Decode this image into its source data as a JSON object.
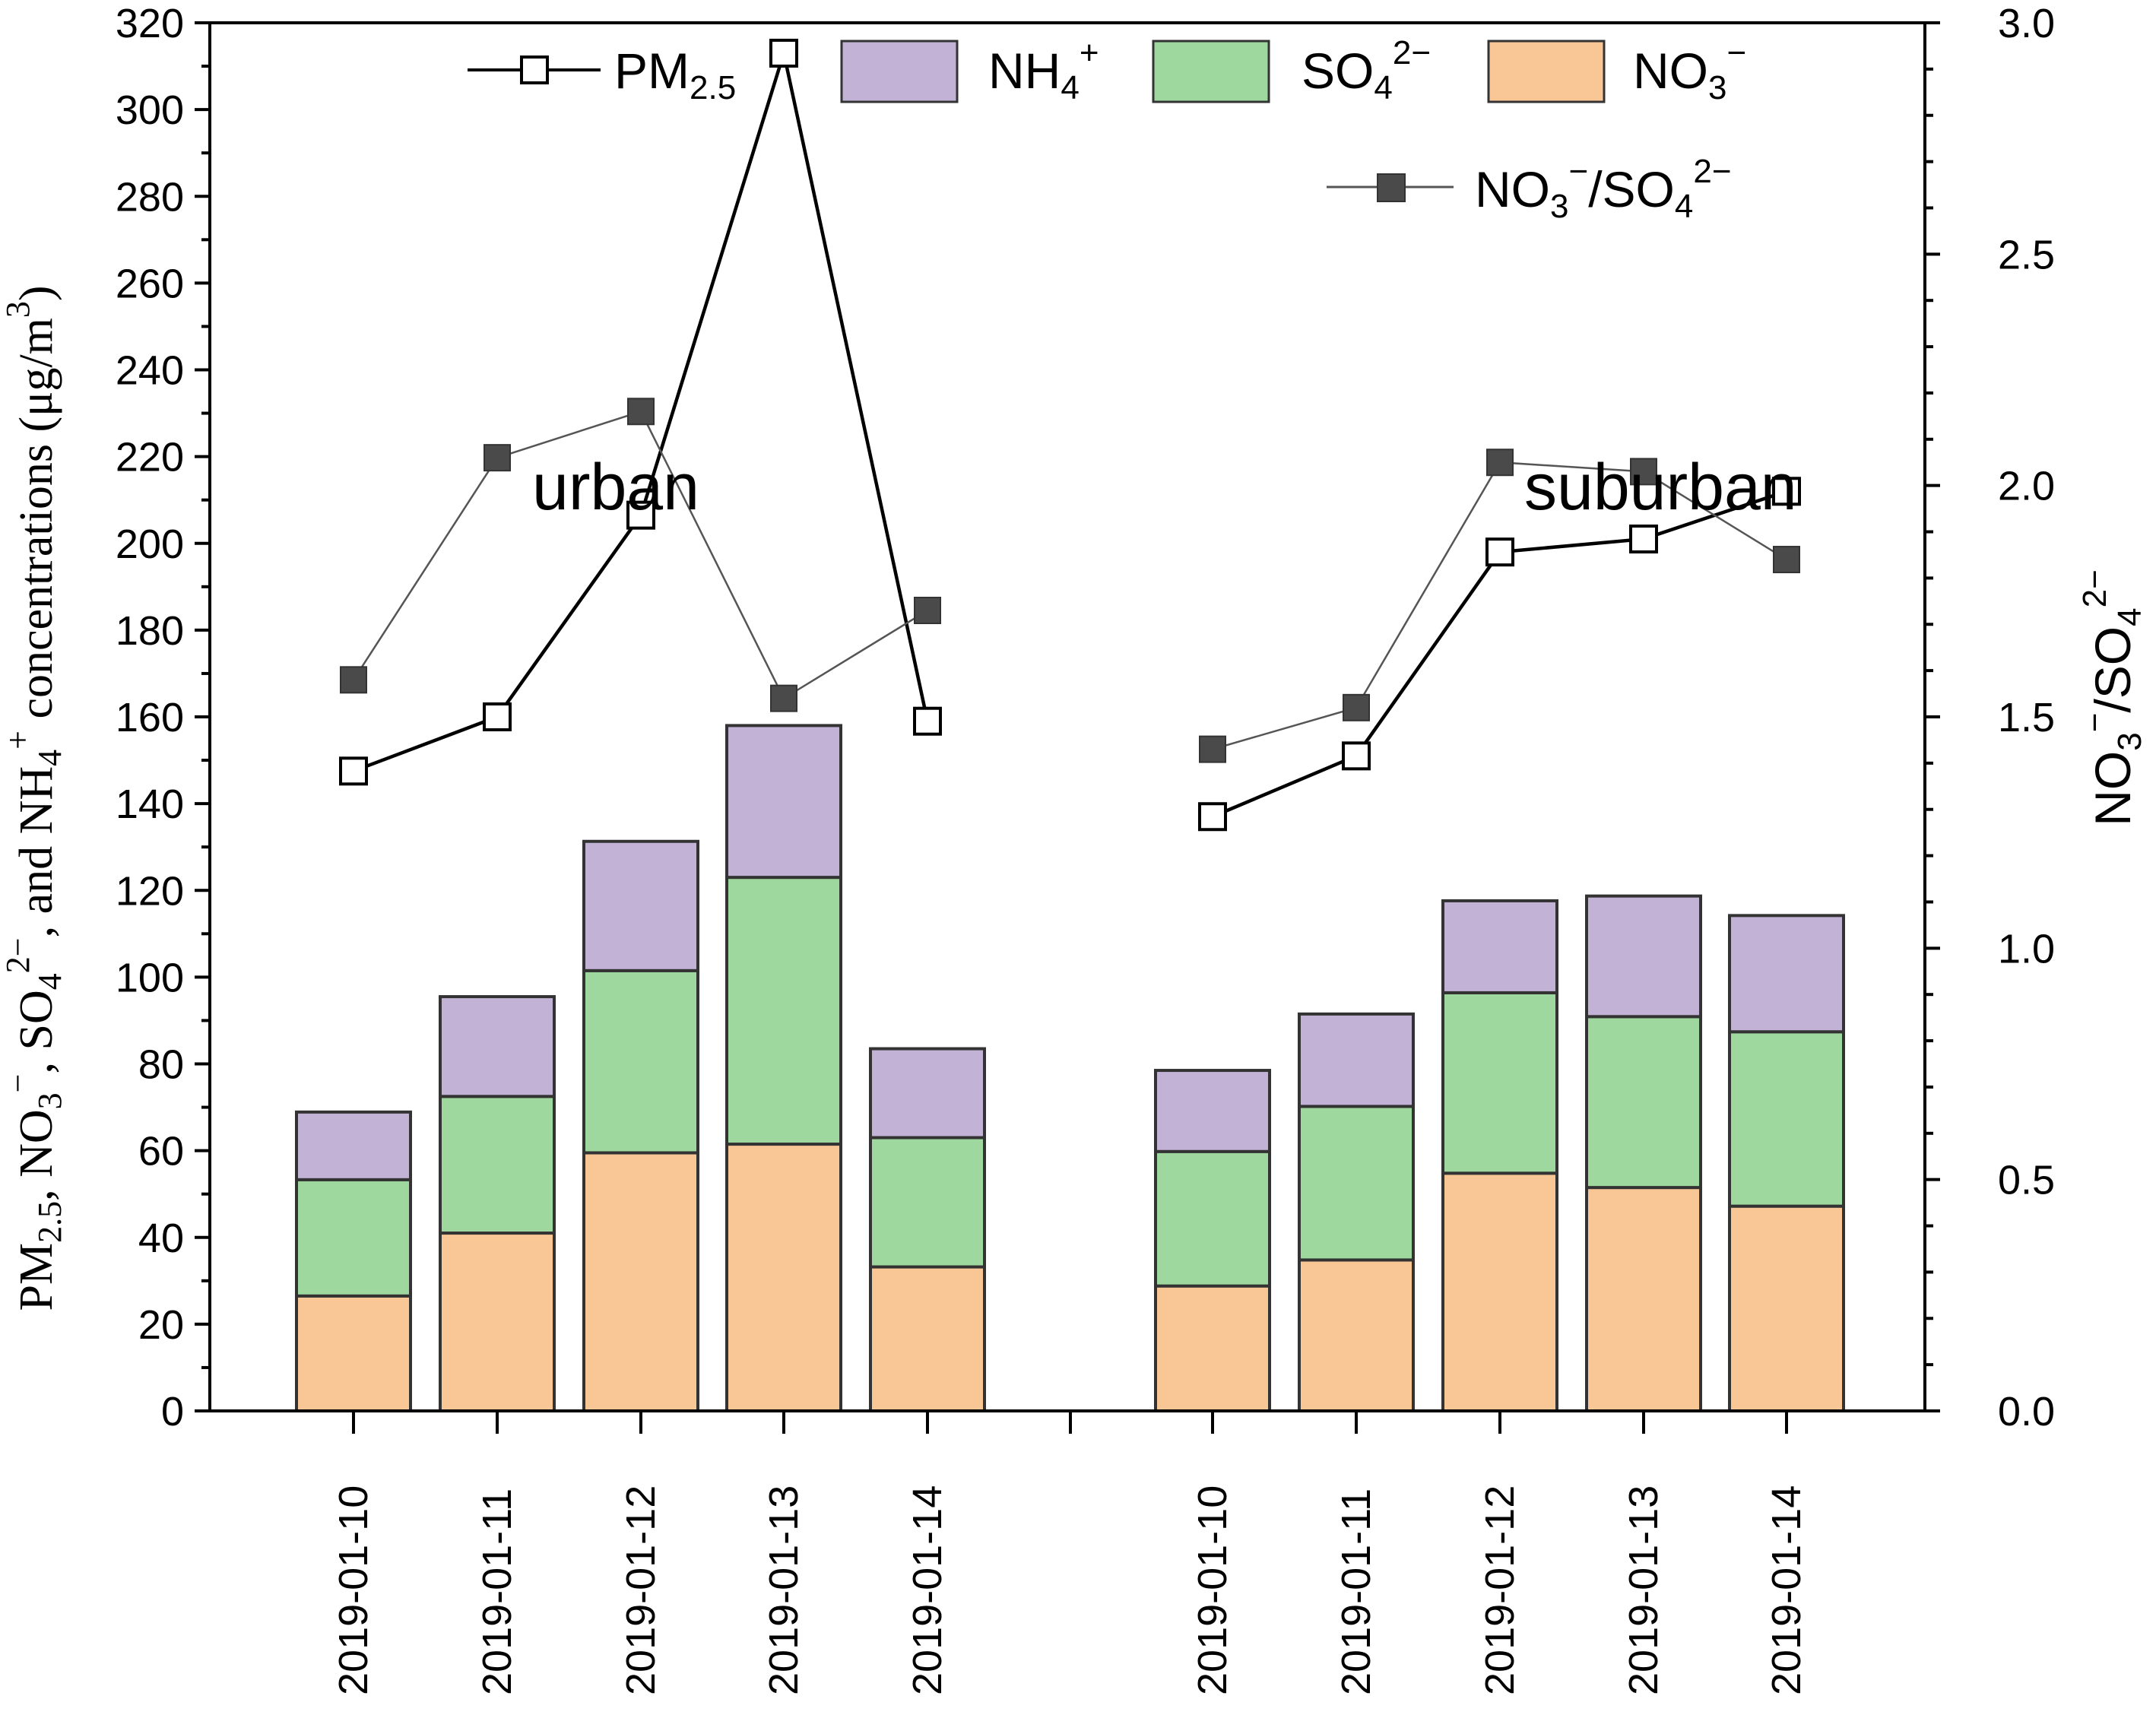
{
  "chart_data": {
    "type": "bar",
    "stacked": true,
    "groups": [
      {
        "name": "urban",
        "label": "urban",
        "categories": [
          "2019-01-10",
          "2019-01-11",
          "2019-01-12",
          "2019-01-13",
          "2019-01-14"
        ]
      },
      {
        "name": "suburban",
        "label": "suburban",
        "categories": [
          "2019-01-10",
          "2019-01-11",
          "2019-01-12",
          "2019-01-13",
          "2019-01-14"
        ]
      }
    ],
    "bar_series": [
      {
        "name": "NO3-",
        "label": "NO",
        "color": "#F9C796",
        "urban": [
          26.5,
          41,
          59.5,
          61.5,
          33.2
        ],
        "suburban": [
          28.8,
          34.8,
          54.8,
          51.5,
          47.2
        ]
      },
      {
        "name": "SO4 2-",
        "label": "SO",
        "color": "#9FD89F",
        "urban": [
          26.8,
          31.5,
          42,
          61.5,
          29.8
        ],
        "suburban": [
          31,
          35.4,
          41.6,
          39.4,
          40.2
        ]
      },
      {
        "name": "NH4+",
        "label": "NH",
        "color": "#C2B3D6",
        "urban": [
          15.6,
          23,
          29.8,
          35,
          20.5
        ],
        "suburban": [
          18.7,
          21.3,
          21.2,
          27.8,
          26.8
        ]
      }
    ],
    "line_series": [
      {
        "name": "PM2.5",
        "label": "PM",
        "axis": "left",
        "marker": "open-square",
        "urban": [
          147.5,
          160,
          206.5,
          313,
          159
        ],
        "suburban": [
          137,
          151,
          198,
          201,
          212
        ]
      },
      {
        "name": "NO3-/SO4 2-",
        "label": "NO",
        "axis": "right",
        "marker": "filled-square",
        "urban": [
          1.58,
          2.06,
          2.16,
          1.54,
          1.73
        ],
        "suburban": [
          1.43,
          1.52,
          2.05,
          2.03,
          1.84
        ]
      }
    ],
    "y_left": {
      "min": 0,
      "max": 320,
      "step": 20,
      "ticks": [
        "0",
        "20",
        "40",
        "60",
        "80",
        "100",
        "120",
        "140",
        "160",
        "180",
        "200",
        "220",
        "240",
        "260",
        "280",
        "300",
        "320"
      ]
    },
    "y_right": {
      "min": 0,
      "max": 3.0,
      "step": 0.5,
      "ticks": [
        "0.0",
        "0.5",
        "1.0",
        "1.5",
        "2.0",
        "2.5",
        "3.0"
      ]
    },
    "ylabel_left": "PM2.5, NO3−, SO42−, and NH4+ concentrations (μg/m3)",
    "ylabel_right": "NO3−/SO42−",
    "legend": {
      "pm25": {
        "main": "PM",
        "sub": "2.5"
      },
      "nh4": {
        "main": "NH",
        "sub": "4",
        "sup": "+"
      },
      "so4": {
        "main": "SO",
        "sub": "4",
        "sup": "2−"
      },
      "no3": {
        "main": "NO",
        "sub": "3",
        "sup": "−"
      },
      "ratio": {
        "a": "NO",
        "a_sub": "3",
        "a_sup": "−",
        "slash": "/SO",
        "b_sub": "4",
        "b_sup": "2−"
      }
    },
    "left_axis_title_parts": {
      "p1": "PM",
      "s1": "2.5",
      "p2": ", NO",
      "s2": "3",
      "u2": "−",
      "p3": ", SO",
      "s3": "4",
      "u3": "2−",
      "p4": ", and NH",
      "s4": "4",
      "u4": "+",
      "p5": " concentrations (μg/m",
      "u5": "3",
      "p6": ")"
    },
    "right_axis_title_parts": {
      "a": "NO",
      "a_sub": "3",
      "a_sup": "−",
      "slash": "/SO",
      "b_sub": "4",
      "b_sup": "2−"
    }
  }
}
